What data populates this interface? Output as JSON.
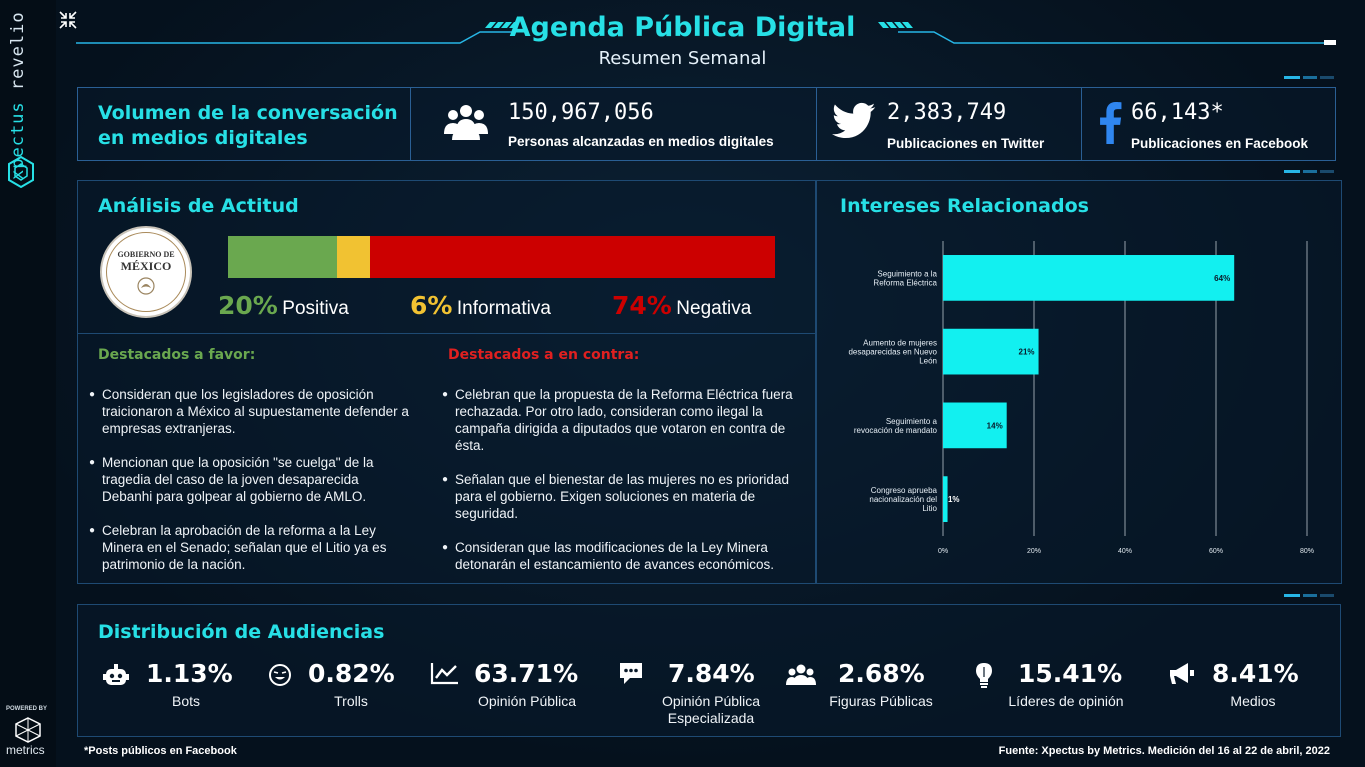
{
  "header": {
    "title": "Agenda Pública Digital",
    "subtitle": "Resumen Semanal"
  },
  "sidebar": {
    "brand_a": "xpectus",
    "brand_b": "revelio",
    "powered_by": "POWERED BY",
    "powered_brand": "metrics"
  },
  "volume": {
    "title_line1": "Volumen de la conversación",
    "title_line2": "en medios digitales",
    "metrics": [
      {
        "icon": "people-icon",
        "value": "150,967,056",
        "label": "Personas alcanzadas en medios digitales"
      },
      {
        "icon": "twitter-icon",
        "value": "2,383,749",
        "label": "Publicaciones en Twitter"
      },
      {
        "icon": "facebook-icon",
        "value": "66,143*",
        "label": "Publicaciones en Facebook"
      }
    ]
  },
  "attitude": {
    "title": "Análisis de Actitud",
    "seal_line1": "GOBIERNO DE",
    "seal_line2": "MÉXICO",
    "segments": [
      {
        "pct": "20%",
        "label": "Positiva",
        "value": 20,
        "color": "#6aa84f"
      },
      {
        "pct": "6%",
        "label": "Informativa",
        "value": 6,
        "color": "#f1c232"
      },
      {
        "pct": "74%",
        "label": "Negativa",
        "value": 74,
        "color": "#cc0000"
      }
    ]
  },
  "highlights": {
    "favor_title": "Destacados a favor:",
    "favor_color": "#6aa84f",
    "favor": [
      "Consideran que los legisladores de oposición traicionaron a México al supuestamente defender a empresas extranjeras.",
      "Mencionan que la oposición \"se cuelga\" de la tragedia del caso de la joven desaparecida Debanhi para golpear al gobierno de AMLO.",
      "Celebran la aprobación de la reforma a la Ley Minera en el Senado; señalan que el Litio ya es patrimonio de la nación."
    ],
    "contra_title": "Destacados a en contra:",
    "contra_color": "#e02020",
    "contra": [
      "Celebran que la propuesta de la Reforma Eléctrica fuera rechazada. Por otro lado, consideran como ilegal la campaña dirigida a diputados que votaron en contra de ésta.",
      "Señalan que el bienestar de las mujeres no es prioridad para el gobierno. Exigen soluciones en materia de seguridad.",
      "Consideran que las modificaciones de la Ley Minera detonarán el estancamiento de avances económicos."
    ]
  },
  "interests": {
    "title": "Intereses Relacionados"
  },
  "chart_data": {
    "type": "bar",
    "orientation": "horizontal",
    "categories": [
      "Seguimiento a la Reforma Eléctrica",
      "Aumento de mujeres desaparecidas en Nuevo León",
      "Seguimiento a revocación de mandato",
      "Congreso aprueba nacionalización del Litio"
    ],
    "values": [
      64,
      21,
      14,
      1
    ],
    "data_labels": [
      "64%",
      "21%",
      "14%",
      "1%"
    ],
    "xlim": [
      0,
      80
    ],
    "xticks": [
      "0%",
      "20%",
      "40%",
      "60%",
      "80%"
    ],
    "bar_color": "#12f0f0",
    "grid": true
  },
  "audiences": {
    "title": "Distribución de Audiencias",
    "items": [
      {
        "icon": "robot-icon",
        "value": "1.13%",
        "label": "Bots",
        "label2": ""
      },
      {
        "icon": "smile-icon",
        "value": "0.82%",
        "label": "Trolls",
        "label2": ""
      },
      {
        "icon": "trend-icon",
        "value": "63.71%",
        "label": "Opinión Pública",
        "label2": ""
      },
      {
        "icon": "chat-icon",
        "value": "7.84%",
        "label": "Opinión Pública",
        "label2": "Especializada"
      },
      {
        "icon": "group-icon",
        "value": "2.68%",
        "label": "Figuras Públicas",
        "label2": ""
      },
      {
        "icon": "bulb-icon",
        "value": "15.41%",
        "label": "Líderes de opinión",
        "label2": ""
      },
      {
        "icon": "megaphone-icon",
        "value": "8.41%",
        "label": "Medios",
        "label2": ""
      }
    ]
  },
  "footer": {
    "note": "*Posts públicos en Facebook",
    "source": "Fuente: Xpectus by Metrics. Medición del 16 al 22 de abril, 2022"
  }
}
